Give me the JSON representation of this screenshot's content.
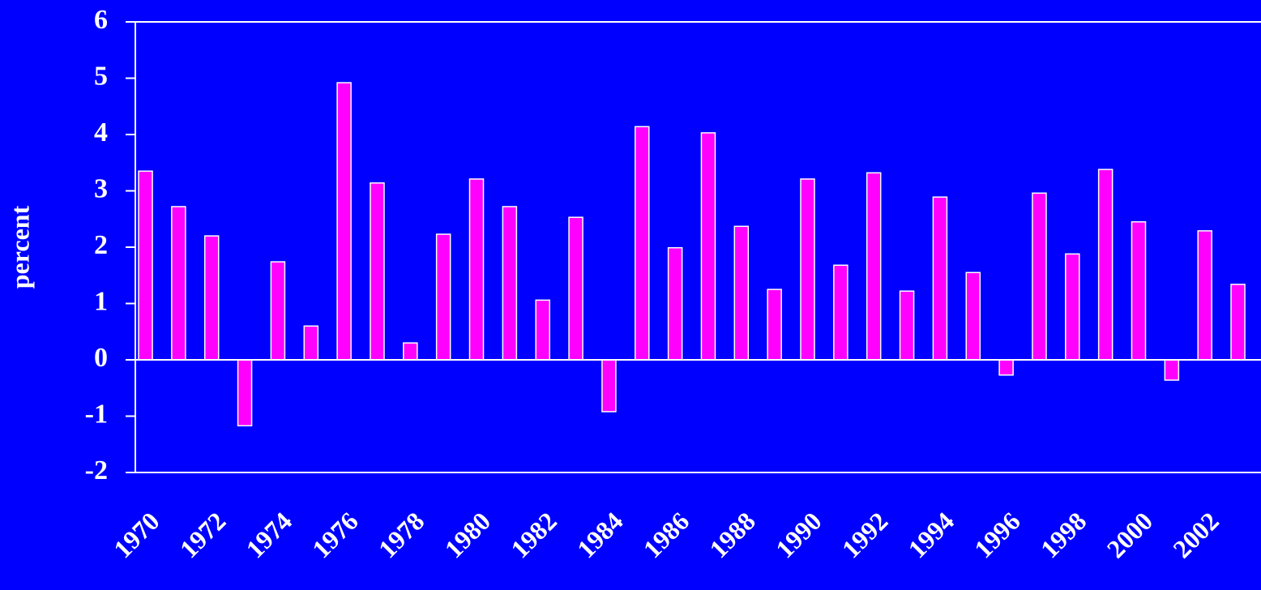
{
  "chart_data": {
    "type": "bar",
    "y_label": "percent",
    "categories": [
      "1970",
      null,
      "1972",
      null,
      "1974",
      null,
      "1976",
      null,
      "1978",
      null,
      "1980",
      null,
      "1982",
      null,
      "1984",
      null,
      "1986",
      null,
      "1988",
      null,
      "1990",
      null,
      "1992",
      null,
      "1994",
      null,
      "1996",
      null,
      "1998",
      null,
      "2000",
      null,
      "2002",
      null
    ],
    "values": [
      3.35,
      2.72,
      2.2,
      -1.17,
      1.74,
      0.6,
      4.92,
      3.14,
      0.3,
      2.23,
      3.21,
      2.72,
      1.06,
      2.53,
      -0.92,
      4.14,
      1.99,
      4.03,
      2.37,
      1.25,
      3.21,
      1.68,
      3.32,
      1.22,
      2.89,
      1.55,
      -0.27,
      2.96,
      1.88,
      3.38,
      2.45,
      -0.36,
      2.29,
      1.34
    ],
    "color": "#ff00ff",
    "ylim": [
      -2,
      6
    ],
    "yticks": [
      -2,
      -1,
      0,
      1,
      2,
      3,
      4,
      5,
      6
    ]
  }
}
